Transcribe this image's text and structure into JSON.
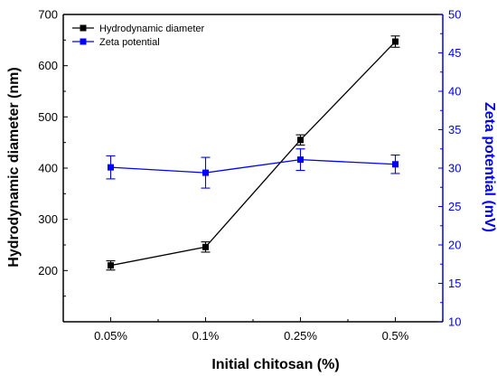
{
  "chart_data": {
    "type": "line",
    "categories": [
      "0.05%",
      "0.1%",
      "0.25%",
      "0.5%"
    ],
    "xlabel": "Initial chitosan (%)",
    "ylabel_left": "Hydrodynamic diameter (nm)",
    "ylabel_right": "Zeta potential (mV)",
    "ylim_left": [
      100,
      700
    ],
    "ylim_right": [
      10,
      50
    ],
    "yticks_left": [
      200,
      300,
      400,
      500,
      600,
      700
    ],
    "yticks_right": [
      10,
      15,
      20,
      25,
      30,
      35,
      40,
      45,
      50
    ],
    "grid": false,
    "legend_position": "top-left",
    "series": [
      {
        "name": "Hydrodynamic diameter",
        "axis": "left",
        "color": "#000000",
        "values": [
          210,
          246,
          455,
          647
        ],
        "errors": [
          9,
          10,
          10,
          11
        ]
      },
      {
        "name": "Zeta potential",
        "axis": "right",
        "color": "#0000ff",
        "values": [
          30.1,
          29.4,
          31.1,
          30.5
        ],
        "errors": [
          1.5,
          2.0,
          1.4,
          1.2
        ]
      }
    ]
  }
}
